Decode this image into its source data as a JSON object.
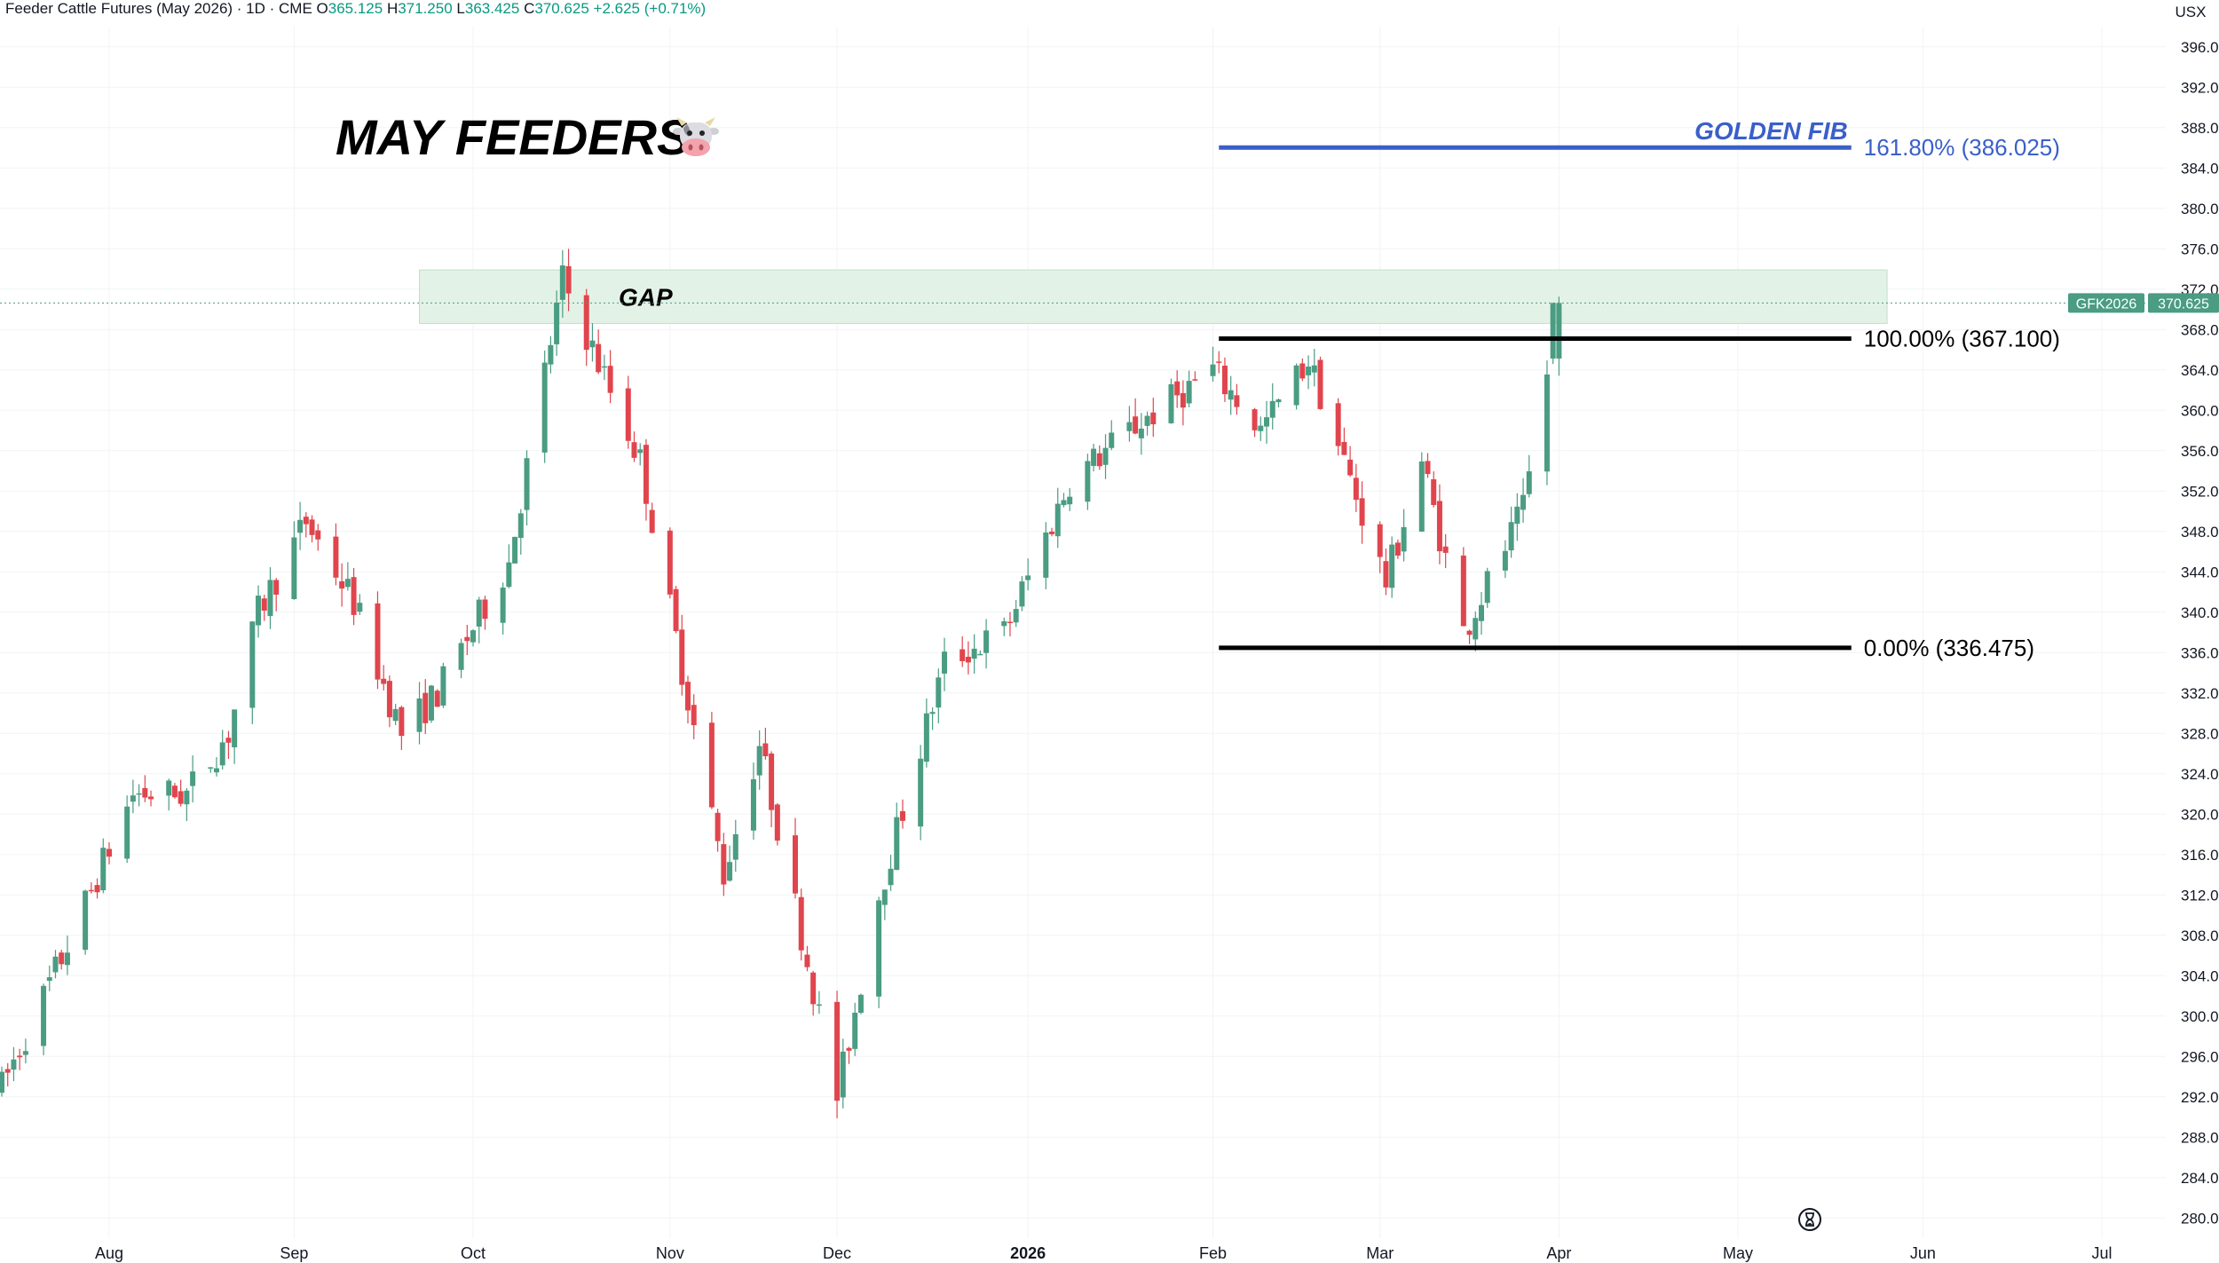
{
  "header": {
    "symbol": "Feeder Cattle Futures (May 2026) · 1D · CME",
    "open_label": "O",
    "open": "365.125",
    "high_label": "H",
    "high": "371.250",
    "low_label": "L",
    "low": "363.425",
    "close_label": "C",
    "close": "370.625",
    "change": "+2.625 (+0.71%)"
  },
  "currency": "USX",
  "title": "MAY FEEDERS",
  "icons": {
    "title_icon": "cow-face-icon",
    "bottom_icon": "hourglass-icon"
  },
  "colors": {
    "up": "#4a9c82",
    "down": "#e0454d",
    "fib_golden": "#3a5fc9",
    "gap_zone": "#e3f2e6",
    "grid": "#f0f3f6"
  },
  "chart_data": {
    "type": "candlestick",
    "ylim": [
      278.0,
      398.0
    ],
    "y_ticks": [
      280,
      284,
      288,
      292,
      296,
      300,
      304,
      308,
      312,
      316,
      320,
      324,
      328,
      332,
      336,
      340,
      344,
      348,
      352,
      356,
      360,
      364,
      368,
      372,
      376,
      380,
      384,
      388,
      392,
      396
    ],
    "y_tick_labels": [
      "280.000",
      "284.000",
      "288.000",
      "292.000",
      "296.000",
      "300.000",
      "304.000",
      "308.000",
      "312.000",
      "316.000",
      "320.000",
      "324.000",
      "328.000",
      "332.000",
      "336.000",
      "340.000",
      "344.000",
      "348.000",
      "352.000",
      "356.000",
      "360.000",
      "364.000",
      "368.000",
      "372.000",
      "376.000",
      "380.000",
      "384.000",
      "388.000",
      "392.000",
      "396.000"
    ],
    "x_range": [
      "2025-07-14",
      "2026-07-12"
    ],
    "x_ticks": [
      {
        "date": "2025-08-01",
        "label": "Aug"
      },
      {
        "date": "2025-09-01",
        "label": "Sep"
      },
      {
        "date": "2025-10-01",
        "label": "Oct"
      },
      {
        "date": "2025-11-03",
        "label": "Nov"
      },
      {
        "date": "2025-12-01",
        "label": "Dec"
      },
      {
        "date": "2026-01-02",
        "label": "2026"
      },
      {
        "date": "2026-02-02",
        "label": "Feb"
      },
      {
        "date": "2026-03-02",
        "label": "Mar"
      },
      {
        "date": "2026-04-01",
        "label": "Apr"
      },
      {
        "date": "2026-05-01",
        "label": "May"
      },
      {
        "date": "2026-06-01",
        "label": "Jun"
      },
      {
        "date": "2026-07-01",
        "label": "Jul"
      }
    ],
    "segments": [
      [
        "2025-07-14",
        293
      ],
      [
        "2025-07-25",
        307
      ],
      [
        "2025-08-05",
        322
      ],
      [
        "2025-08-14",
        322
      ],
      [
        "2025-08-21",
        328
      ],
      [
        "2025-08-26",
        340
      ],
      [
        "2025-09-03",
        349
      ],
      [
        "2025-09-11",
        341
      ],
      [
        "2025-09-19",
        328
      ],
      [
        "2025-09-25",
        332
      ],
      [
        "2025-10-07",
        345
      ],
      [
        "2025-10-16",
        373
      ],
      [
        "2025-10-29",
        355
      ],
      [
        "2025-11-12",
        314
      ],
      [
        "2025-11-18",
        327
      ],
      [
        "2025-12-01",
        292
      ],
      [
        "2025-12-08",
        312
      ],
      [
        "2025-12-19",
        335
      ],
      [
        "2025-12-29",
        338
      ],
      [
        "2026-01-09",
        353
      ],
      [
        "2026-01-19",
        358
      ],
      [
        "2026-02-02",
        364
      ],
      [
        "2026-02-10",
        358
      ],
      [
        "2026-02-18",
        365
      ],
      [
        "2026-03-03",
        343
      ],
      [
        "2026-03-09",
        355
      ],
      [
        "2026-03-16",
        338
      ],
      [
        "2026-03-26",
        350
      ],
      [
        "2026-04-01",
        370.625
      ]
    ],
    "last_candle": {
      "open": 365.125,
      "high": 371.25,
      "low": 363.425,
      "close": 370.625
    },
    "price_tag": {
      "symbol": "GFK2026",
      "value": "370.625"
    },
    "gap_zone": {
      "label": "GAP",
      "from": "2025-09-22",
      "to": "2026-05-26",
      "low": 368.6,
      "high": 373.9
    },
    "fib_levels": [
      {
        "label": "161.80% (386.025)",
        "price": 386.025,
        "tag": "GOLDEN FIB",
        "from": "2026-02-03",
        "to": "2026-05-20"
      },
      {
        "label": "100.00% (367.100)",
        "price": 367.1,
        "from": "2026-02-03",
        "to": "2026-05-20"
      },
      {
        "label": "0.00% (336.475)",
        "price": 336.475,
        "from": "2026-02-03",
        "to": "2026-05-20"
      }
    ]
  }
}
